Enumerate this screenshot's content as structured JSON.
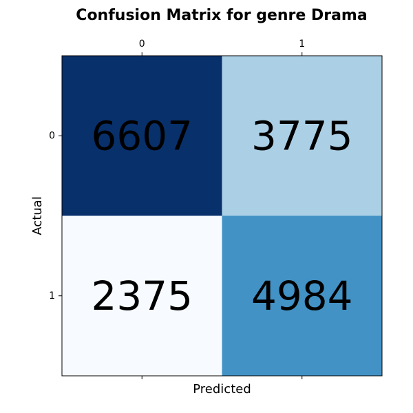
{
  "chart_data": {
    "type": "heatmap",
    "title": "Confusion Matrix for genre Drama",
    "xlabel": "Predicted",
    "ylabel": "Actual",
    "x_categories": [
      "0",
      "1"
    ],
    "y_categories": [
      "0",
      "1"
    ],
    "x_tick_position": "top",
    "values": [
      [
        6607,
        3775
      ],
      [
        2375,
        4984
      ]
    ],
    "colormap": "Blues",
    "cell_colors": [
      [
        "#08306b",
        "#abd0e6"
      ],
      [
        "#f7fbff",
        "#4292c6"
      ]
    ],
    "grid": false,
    "legend": "none"
  }
}
